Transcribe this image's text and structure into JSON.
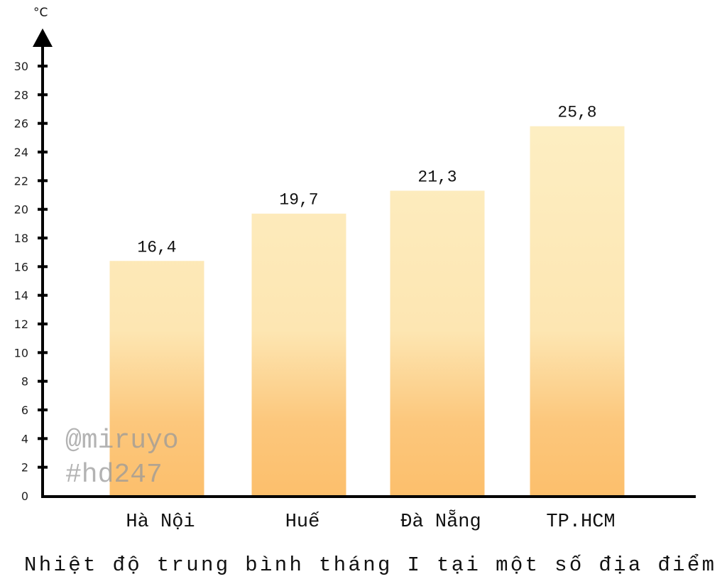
{
  "chart_data": {
    "type": "bar",
    "title": "Nhiệt độ trung bình tháng I tại một số địa điểm",
    "ylabel": "°C",
    "xlabel": "",
    "categories": [
      "Hà Nội",
      "Huế",
      "Đà Nẵng",
      "TP.HCM"
    ],
    "values": [
      16.4,
      19.7,
      21.3,
      25.8
    ],
    "data_labels": [
      "16,4",
      "19,7",
      "21,3",
      "25,8"
    ],
    "ylim": [
      0,
      30
    ],
    "yticks": [
      0,
      2,
      4,
      6,
      8,
      10,
      12,
      14,
      16,
      18,
      20,
      22,
      24,
      26,
      28,
      30
    ],
    "grid": false,
    "bar_color_top": "#fdeec2",
    "bar_color_bottom": "#fcbf6c"
  },
  "watermark": [
    "@miruyo",
    "#hd247"
  ]
}
